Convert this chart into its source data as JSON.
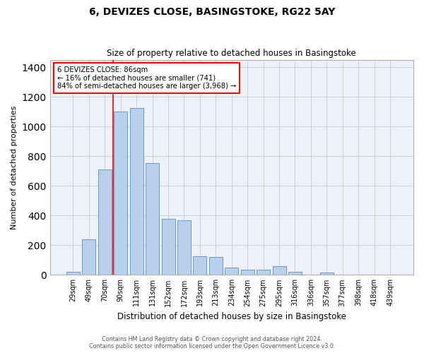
{
  "title1": "6, DEVIZES CLOSE, BASINGSTOKE, RG22 5AY",
  "title2": "Size of property relative to detached houses in Basingstoke",
  "xlabel": "Distribution of detached houses by size in Basingstoke",
  "ylabel": "Number of detached properties",
  "categories": [
    "29sqm",
    "49sqm",
    "70sqm",
    "90sqm",
    "111sqm",
    "131sqm",
    "152sqm",
    "172sqm",
    "193sqm",
    "213sqm",
    "234sqm",
    "254sqm",
    "275sqm",
    "295sqm",
    "316sqm",
    "336sqm",
    "357sqm",
    "377sqm",
    "398sqm",
    "418sqm",
    "439sqm"
  ],
  "bar_heights": [
    20,
    240,
    710,
    1100,
    1125,
    755,
    375,
    370,
    125,
    120,
    50,
    35,
    35,
    60,
    20,
    0,
    15,
    0,
    0,
    0,
    0
  ],
  "bar_color": "#b8d0ea",
  "bar_edge_color": "#6699cc",
  "annotation_title": "6 DEVIZES CLOSE: 86sqm",
  "annotation_line1": "← 16% of detached houses are smaller (741)",
  "annotation_line2": "84% of semi-detached houses are larger (3,968) →",
  "ylim": [
    0,
    1450
  ],
  "yticks": [
    0,
    200,
    400,
    600,
    800,
    1000,
    1200,
    1400
  ],
  "footer1": "Contains HM Land Registry data © Crown copyright and database right 2024.",
  "footer2": "Contains public sector information licensed under the Open Government Licence v3.0.",
  "background_color": "#eef2f8",
  "grid_color": "#c8cfe0",
  "red_line_index": 2.5
}
